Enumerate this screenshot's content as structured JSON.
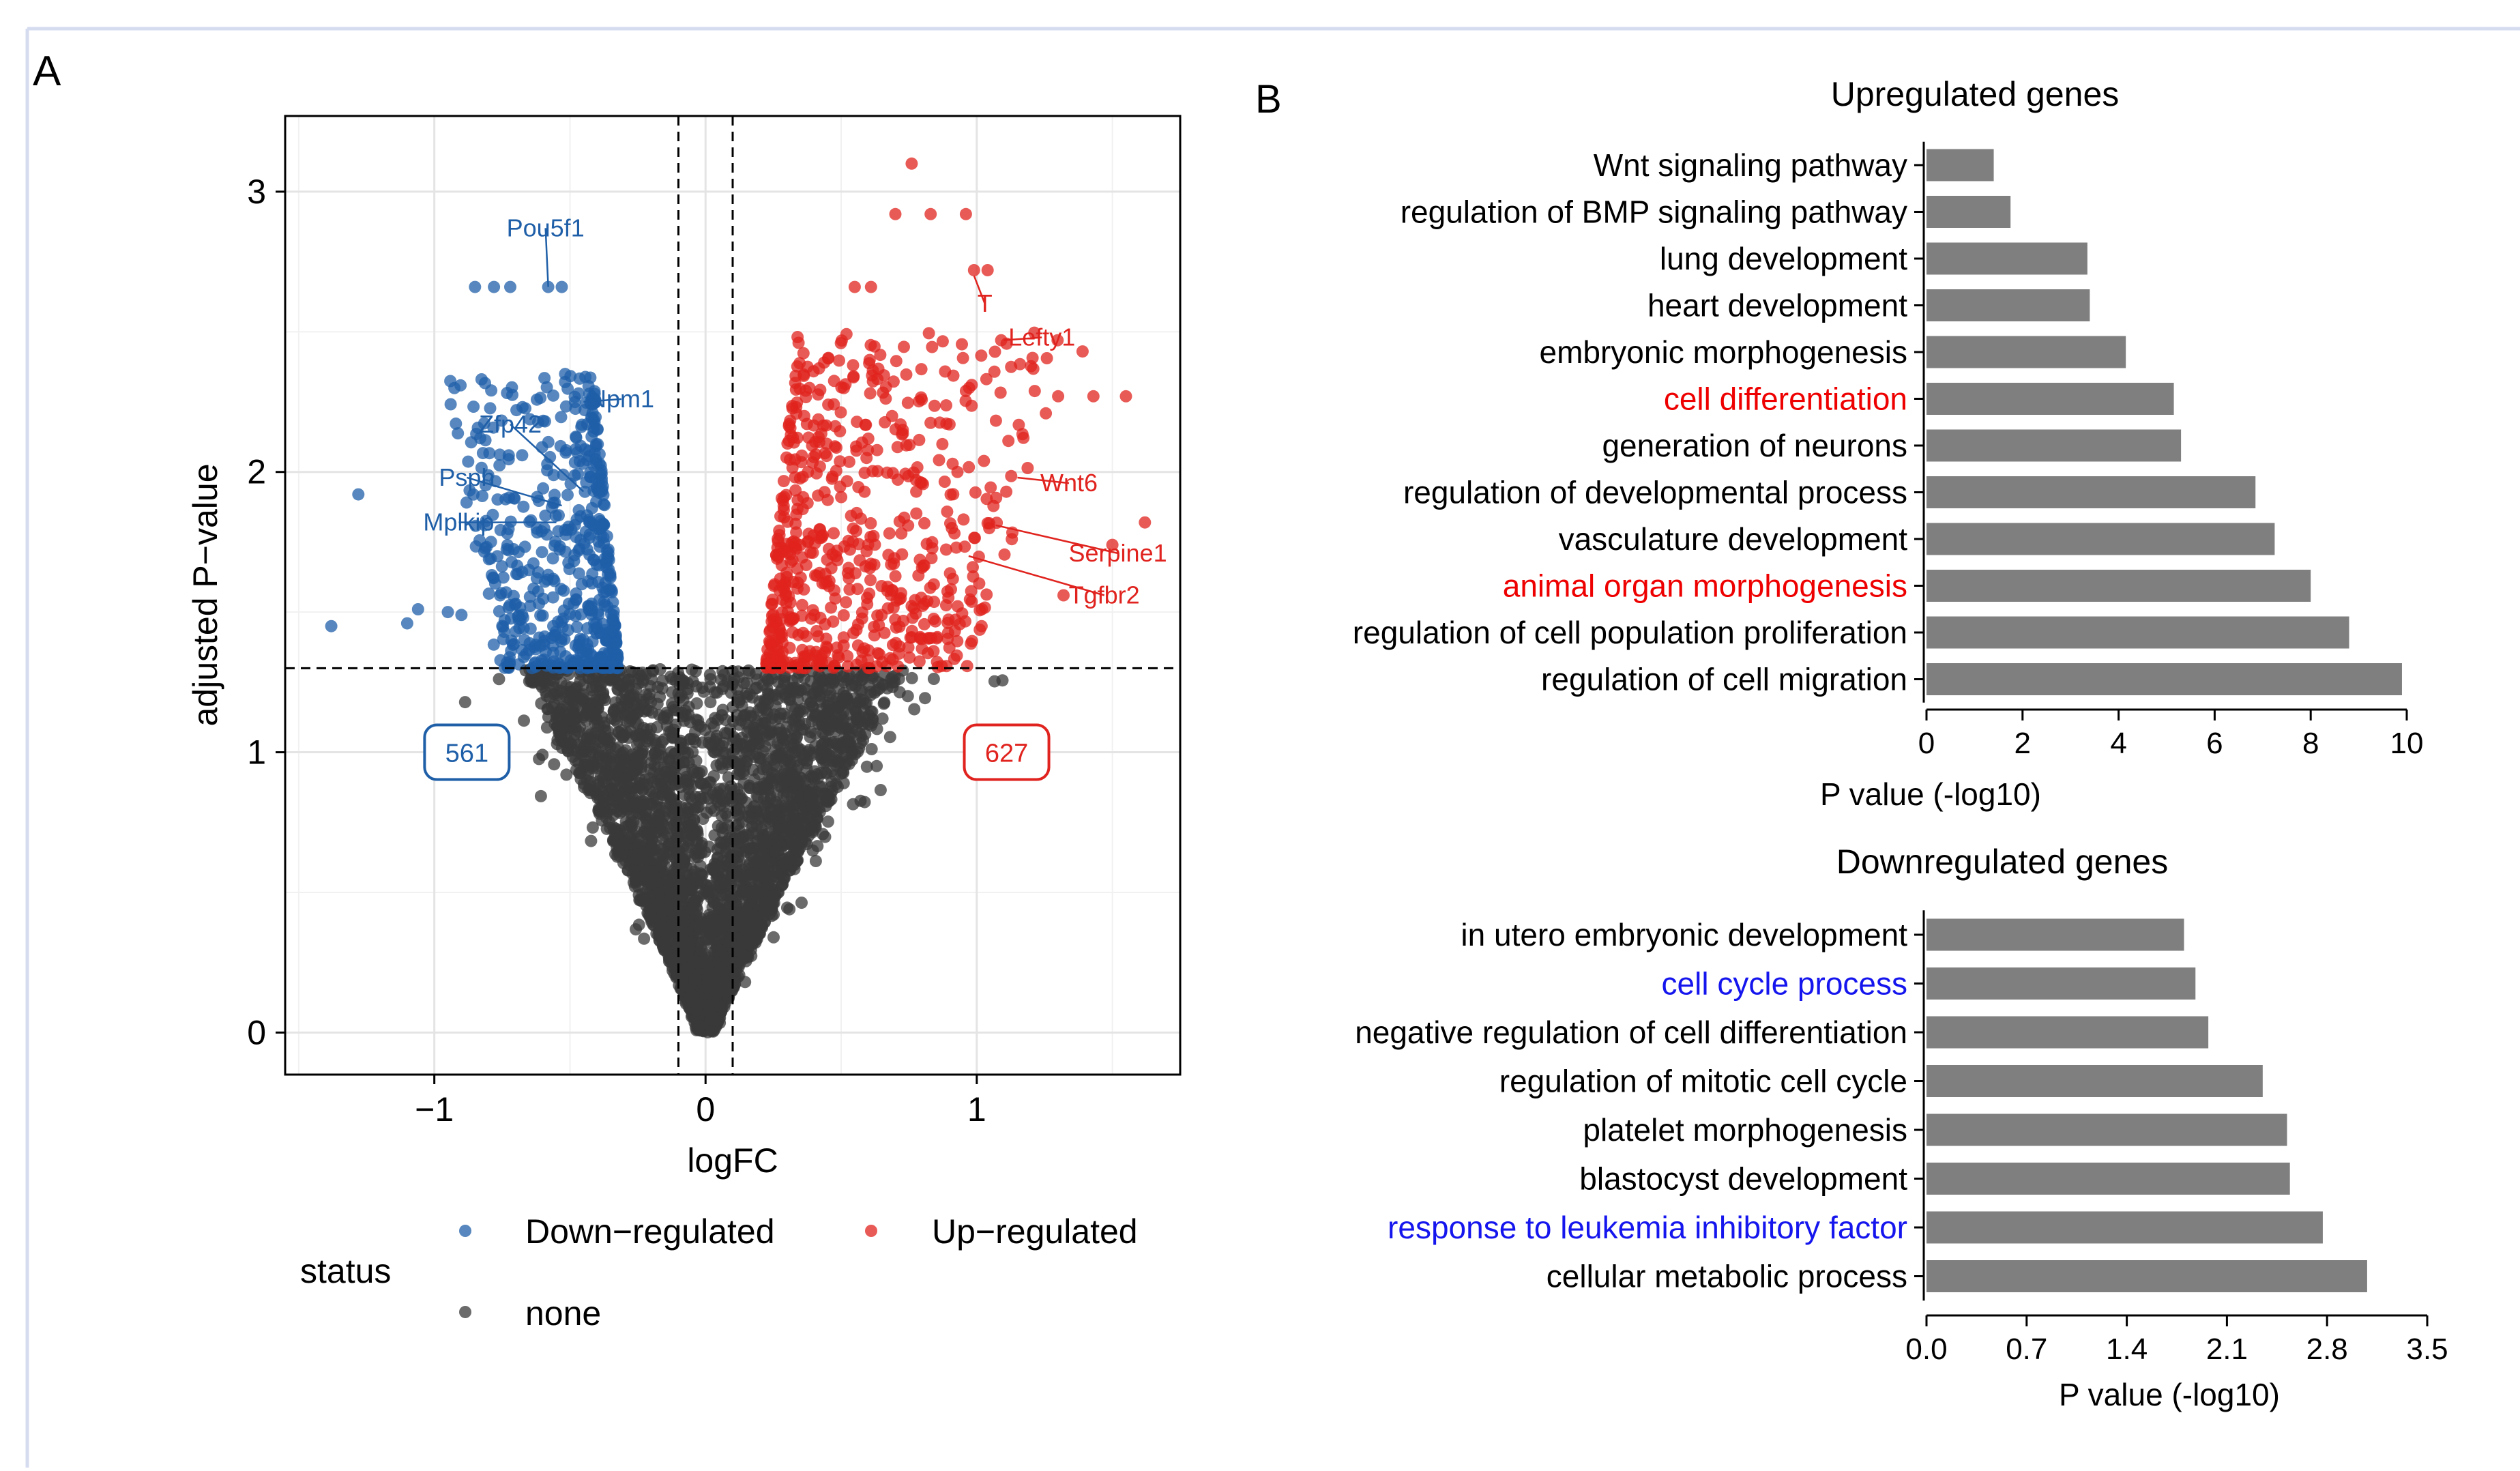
{
  "panel_labels": {
    "a": "A",
    "b": "B"
  },
  "colors": {
    "down": "#1f5fa8",
    "up": "#e0231e",
    "none": "#3a3a3a",
    "bar": "#7f7f7f",
    "highlight_red": "#ee0000",
    "highlight_blue": "#1515ee",
    "frame": "#d6dcef"
  },
  "chart_data": [
    {
      "type": "scatter",
      "xlabel": "logFC",
      "ylabel": "adjusted P−value",
      "xlim": [
        -1.55,
        1.75
      ],
      "ylim": [
        -0.15,
        3.27
      ],
      "xticks": [
        -1,
        0,
        1
      ],
      "xtick_labels": [
        "−1",
        "0",
        "1"
      ],
      "yticks": [
        0,
        1,
        2,
        3
      ],
      "ytick_labels": [
        "0",
        "1",
        "2",
        "3"
      ],
      "threshold_lines": {
        "logFC": [
          -0.1,
          0.1
        ],
        "adj_p": 1.3
      },
      "counts": {
        "down": "561",
        "up": "627"
      },
      "legend": {
        "title": "status",
        "entries": [
          {
            "key": "down",
            "label": "Down−regulated"
          },
          {
            "key": "up",
            "label": "Up−regulated"
          },
          {
            "key": "none",
            "label": "none"
          }
        ]
      },
      "labeled_genes": [
        {
          "name": "Pou5f1",
          "status": "down",
          "x": -0.58,
          "y": 2.66,
          "lx": -0.59,
          "ly": 2.87
        },
        {
          "name": "Npm1",
          "status": "down",
          "x": -0.45,
          "y": 2.25,
          "lx": -0.31,
          "ly": 2.26
        },
        {
          "name": "Zfp42",
          "status": "down",
          "x": -0.45,
          "y": 1.93,
          "lx": -0.72,
          "ly": 2.17
        },
        {
          "name": "Psph",
          "status": "down",
          "x": -0.53,
          "y": 1.88,
          "lx": -0.88,
          "ly": 1.98
        },
        {
          "name": "Mplkip",
          "status": "down",
          "x": -0.55,
          "y": 1.82,
          "lx": -0.91,
          "ly": 1.82
        },
        {
          "name": "T",
          "status": "up",
          "x": 0.99,
          "y": 2.7,
          "lx": 1.03,
          "ly": 2.6
        },
        {
          "name": "Lefty1",
          "status": "up",
          "x": 1.1,
          "y": 2.47,
          "lx": 1.24,
          "ly": 2.48
        },
        {
          "name": "Wnt6",
          "status": "up",
          "x": 1.15,
          "y": 1.98,
          "lx": 1.34,
          "ly": 1.96
        },
        {
          "name": "Serpine1",
          "status": "up",
          "x": 1.07,
          "y": 1.81,
          "lx": 1.52,
          "ly": 1.71
        },
        {
          "name": "Tgfbr2",
          "status": "up",
          "x": 0.97,
          "y": 1.7,
          "lx": 1.47,
          "ly": 1.56
        }
      ]
    },
    {
      "type": "bar",
      "orientation": "horizontal",
      "title": "Upregulated genes",
      "xlabel": "P value (-log10)",
      "xlim": [
        0,
        10
      ],
      "xticks": [
        0,
        2,
        4,
        6,
        8,
        10
      ],
      "xtick_labels": [
        "0",
        "2",
        "4",
        "6",
        "8",
        "10"
      ],
      "categories": [
        "Wnt signaling pathway",
        "regulation of BMP signaling pathway",
        "lung development",
        "heart development",
        "embryonic morphogenesis",
        "cell differentiation",
        "generation of neurons",
        "regulation of developmental process",
        "vasculature development",
        "animal organ morphogenesis",
        "regulation of cell population proliferation",
        "regulation of cell migration"
      ],
      "values": [
        1.4,
        1.75,
        3.35,
        3.4,
        4.15,
        5.15,
        5.3,
        6.85,
        7.25,
        8.0,
        8.8,
        9.9
      ],
      "highlighted": [
        "cell differentiation",
        "animal organ morphogenesis"
      ],
      "highlight_color": "red"
    },
    {
      "type": "bar",
      "orientation": "horizontal",
      "title": "Downregulated genes",
      "xlabel": "P value (-log10)",
      "xlim": [
        0,
        3.5
      ],
      "xticks": [
        0.0,
        0.7,
        1.4,
        2.1,
        2.8,
        3.5
      ],
      "xtick_labels": [
        "0.0",
        "0.7",
        "1.4",
        "2.1",
        "2.8",
        "3.5"
      ],
      "categories": [
        "in utero embryonic development",
        "cell cycle process",
        "negative regulation of cell differentiation",
        "regulation of mitotic cell cycle",
        "platelet morphogenesis",
        "blastocyst development",
        "response to leukemia inhibitory factor",
        "cellular metabolic process"
      ],
      "values": [
        1.8,
        1.88,
        1.97,
        2.35,
        2.52,
        2.54,
        2.77,
        3.08
      ],
      "highlighted": [
        "cell cycle process",
        "response to leukemia inhibitory factor"
      ],
      "highlight_color": "blue"
    }
  ]
}
